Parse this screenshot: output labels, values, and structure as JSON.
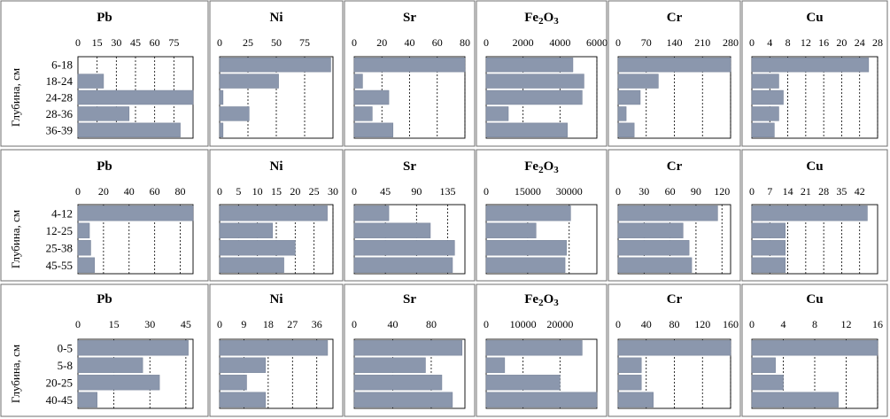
{
  "colors": {
    "bar": "#8b97ad",
    "bar_stroke": "#7a869c",
    "border": "#6f6f6f",
    "grid": "#000000"
  },
  "chart_data": [
    {
      "ylabel": "Глубина, см",
      "categories": [
        "6-18",
        "18-24",
        "24-28",
        "28-36",
        "36-39"
      ],
      "panels": [
        {
          "type": "bar",
          "orientation": "horizontal",
          "title": "Pb",
          "ticks": [
            "0",
            "15",
            "30",
            "45",
            "60",
            "75"
          ],
          "xlim": [
            0,
            90
          ],
          "values": [
            0,
            20,
            90,
            40,
            80
          ]
        },
        {
          "type": "bar",
          "orientation": "horizontal",
          "title": "Ni",
          "ticks": [
            "0",
            "25",
            "50",
            "75"
          ],
          "xlim": [
            0,
            100
          ],
          "values": [
            98,
            52,
            3,
            26,
            3
          ]
        },
        {
          "type": "bar",
          "orientation": "horizontal",
          "title": "Sr",
          "ticks": [
            "0",
            "20",
            "40",
            "60",
            "80"
          ],
          "xlim": [
            0,
            80
          ],
          "values": [
            80,
            6,
            25,
            13,
            28
          ]
        },
        {
          "type": "bar",
          "orientation": "horizontal",
          "title": "Fe",
          "title_sub": "2",
          "title_tail": "O",
          "title_sub2": "3",
          "ticks": [
            "0",
            "2000",
            "4000",
            "6000"
          ],
          "xlim": [
            0,
            6000
          ],
          "values": [
            4700,
            5300,
            5200,
            1200,
            4400
          ]
        },
        {
          "type": "bar",
          "orientation": "horizontal",
          "title": "Cr",
          "ticks": [
            "0",
            "70",
            "140",
            "210",
            "280"
          ],
          "xlim": [
            0,
            280
          ],
          "values": [
            280,
            100,
            55,
            20,
            40
          ]
        },
        {
          "type": "bar",
          "orientation": "horizontal",
          "title": "Cu",
          "ticks": [
            "0",
            "4",
            "8",
            "12",
            "16",
            "20",
            "24",
            "28"
          ],
          "xlim": [
            0,
            28
          ],
          "values": [
            26,
            6,
            7,
            6,
            5
          ]
        }
      ]
    },
    {
      "ylabel": "Глубина, см",
      "categories": [
        "4-12",
        "12-25",
        "25-38",
        "45-55"
      ],
      "panels": [
        {
          "type": "bar",
          "orientation": "horizontal",
          "title": "Pb",
          "ticks": [
            "0",
            "20",
            "40",
            "60",
            "80"
          ],
          "xlim": [
            0,
            90
          ],
          "values": [
            90,
            9,
            10,
            13
          ]
        },
        {
          "type": "bar",
          "orientation": "horizontal",
          "title": "Ni",
          "ticks": [
            "0",
            "5",
            "10",
            "15",
            "20",
            "25",
            "30"
          ],
          "xlim": [
            0,
            30
          ],
          "values": [
            28.5,
            14,
            20,
            17
          ]
        },
        {
          "type": "bar",
          "orientation": "horizontal",
          "title": "Sr",
          "ticks": [
            "0",
            "45",
            "90",
            "135"
          ],
          "xlim": [
            0,
            160
          ],
          "values": [
            50,
            110,
            145,
            142
          ]
        },
        {
          "type": "bar",
          "orientation": "horizontal",
          "title": "Fe",
          "title_sub": "2",
          "title_tail": "O",
          "title_sub2": "3",
          "ticks": [
            "0",
            "15000",
            "30000"
          ],
          "xlim": [
            0,
            40000
          ],
          "values": [
            30500,
            18000,
            29000,
            28500
          ]
        },
        {
          "type": "bar",
          "orientation": "horizontal",
          "title": "Cr",
          "ticks": [
            "0",
            "30",
            "60",
            "90",
            "120"
          ],
          "xlim": [
            0,
            130
          ],
          "values": [
            115,
            75,
            82,
            85
          ]
        },
        {
          "type": "bar",
          "orientation": "horizontal",
          "title": "Cu",
          "ticks": [
            "0",
            "7",
            "14",
            "21",
            "28",
            "35",
            "42"
          ],
          "xlim": [
            0,
            49
          ],
          "values": [
            45,
            13,
            13,
            13
          ]
        }
      ]
    },
    {
      "ylabel": "Глубина, см",
      "categories": [
        "0-5",
        "5-8",
        "20-25",
        "40-45"
      ],
      "panels": [
        {
          "type": "bar",
          "orientation": "horizontal",
          "title": "Pb",
          "ticks": [
            "0",
            "15",
            "30",
            "45"
          ],
          "xlim": [
            0,
            48
          ],
          "values": [
            46,
            27,
            34,
            8
          ]
        },
        {
          "type": "bar",
          "orientation": "horizontal",
          "title": "Ni",
          "ticks": [
            "0",
            "9",
            "18",
            "27",
            "36"
          ],
          "xlim": [
            0,
            42
          ],
          "values": [
            40,
            17,
            10,
            17
          ]
        },
        {
          "type": "bar",
          "orientation": "horizontal",
          "title": "Sr",
          "ticks": [
            "0",
            "40",
            "80"
          ],
          "xlim": [
            0,
            115
          ],
          "values": [
            112,
            74,
            91,
            102
          ]
        },
        {
          "type": "bar",
          "orientation": "horizontal",
          "title": "Fe",
          "title_sub": "2",
          "title_tail": "O",
          "title_sub2": "3",
          "ticks": [
            "0",
            "10000",
            "20000"
          ],
          "xlim": [
            0,
            30000
          ],
          "values": [
            26000,
            5000,
            20000,
            30000
          ]
        },
        {
          "type": "bar",
          "orientation": "horizontal",
          "title": "Cr",
          "ticks": [
            "0",
            "40",
            "80",
            "120",
            "160"
          ],
          "xlim": [
            0,
            160
          ],
          "values": [
            160,
            33,
            33,
            50
          ]
        },
        {
          "type": "bar",
          "orientation": "horizontal",
          "title": "Cu",
          "ticks": [
            "0",
            "4",
            "8",
            "12",
            "16"
          ],
          "xlim": [
            0,
            16
          ],
          "values": [
            16,
            3,
            4,
            11
          ]
        }
      ]
    }
  ]
}
